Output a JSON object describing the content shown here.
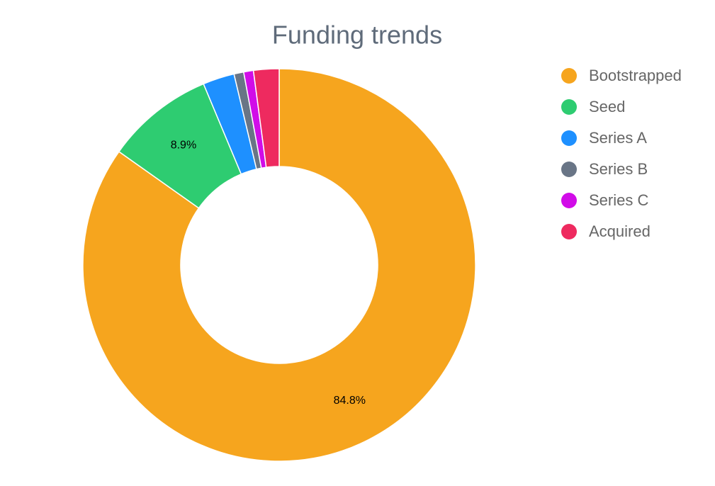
{
  "chart_data": {
    "type": "donut",
    "title": "Funding trends",
    "categories": [
      "Bootstrapped",
      "Seed",
      "Series A",
      "Series B",
      "Series C",
      "Acquired"
    ],
    "values": [
      84.8,
      8.9,
      2.6,
      0.8,
      0.8,
      2.1
    ],
    "value_labels": [
      "84.8%",
      "8.9%",
      null,
      null,
      null,
      null
    ],
    "colors": [
      "#f6a51e",
      "#2ecc71",
      "#1e90ff",
      "#697586",
      "#d10ce8",
      "#ee2a5f"
    ],
    "legend": "right"
  }
}
